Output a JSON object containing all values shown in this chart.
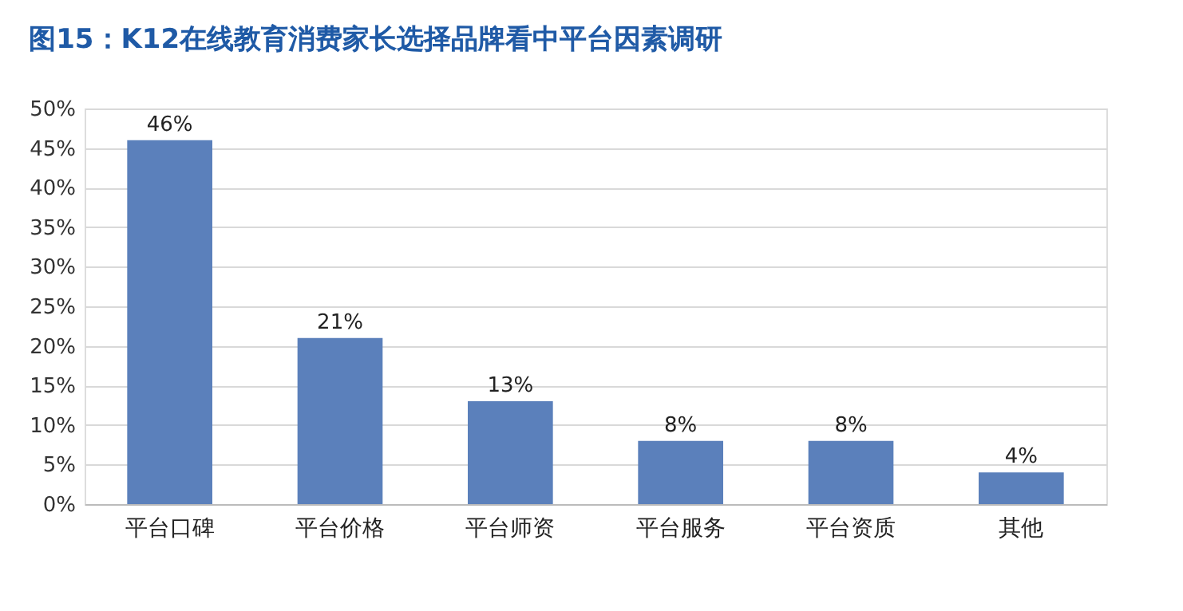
{
  "chart_data": {
    "type": "bar",
    "title": "图15：K12在线教育消费家长选择品牌看中平台因素调研",
    "categories": [
      "平台口碑",
      "平台价格",
      "平台师资",
      "平台服务",
      "平台资质",
      "其他"
    ],
    "values": [
      46,
      21,
      13,
      8,
      8,
      4
    ],
    "value_labels": [
      "46%",
      "21%",
      "13%",
      "8%",
      "8%",
      "4%"
    ],
    "color": "#5b80bb",
    "ylim": [
      0,
      50
    ],
    "yticks": [
      {
        "value": 0,
        "label": "0%"
      },
      {
        "value": 5,
        "label": "5%"
      },
      {
        "value": 10,
        "label": "10%"
      },
      {
        "value": 15,
        "label": "15%"
      },
      {
        "value": 20,
        "label": "20%"
      },
      {
        "value": 25,
        "label": "25%"
      },
      {
        "value": 30,
        "label": "30%"
      },
      {
        "value": 35,
        "label": "35%"
      },
      {
        "value": 40,
        "label": "40%"
      },
      {
        "value": 45,
        "label": "45%"
      },
      {
        "value": 50,
        "label": "50%"
      }
    ],
    "grid": "y"
  }
}
